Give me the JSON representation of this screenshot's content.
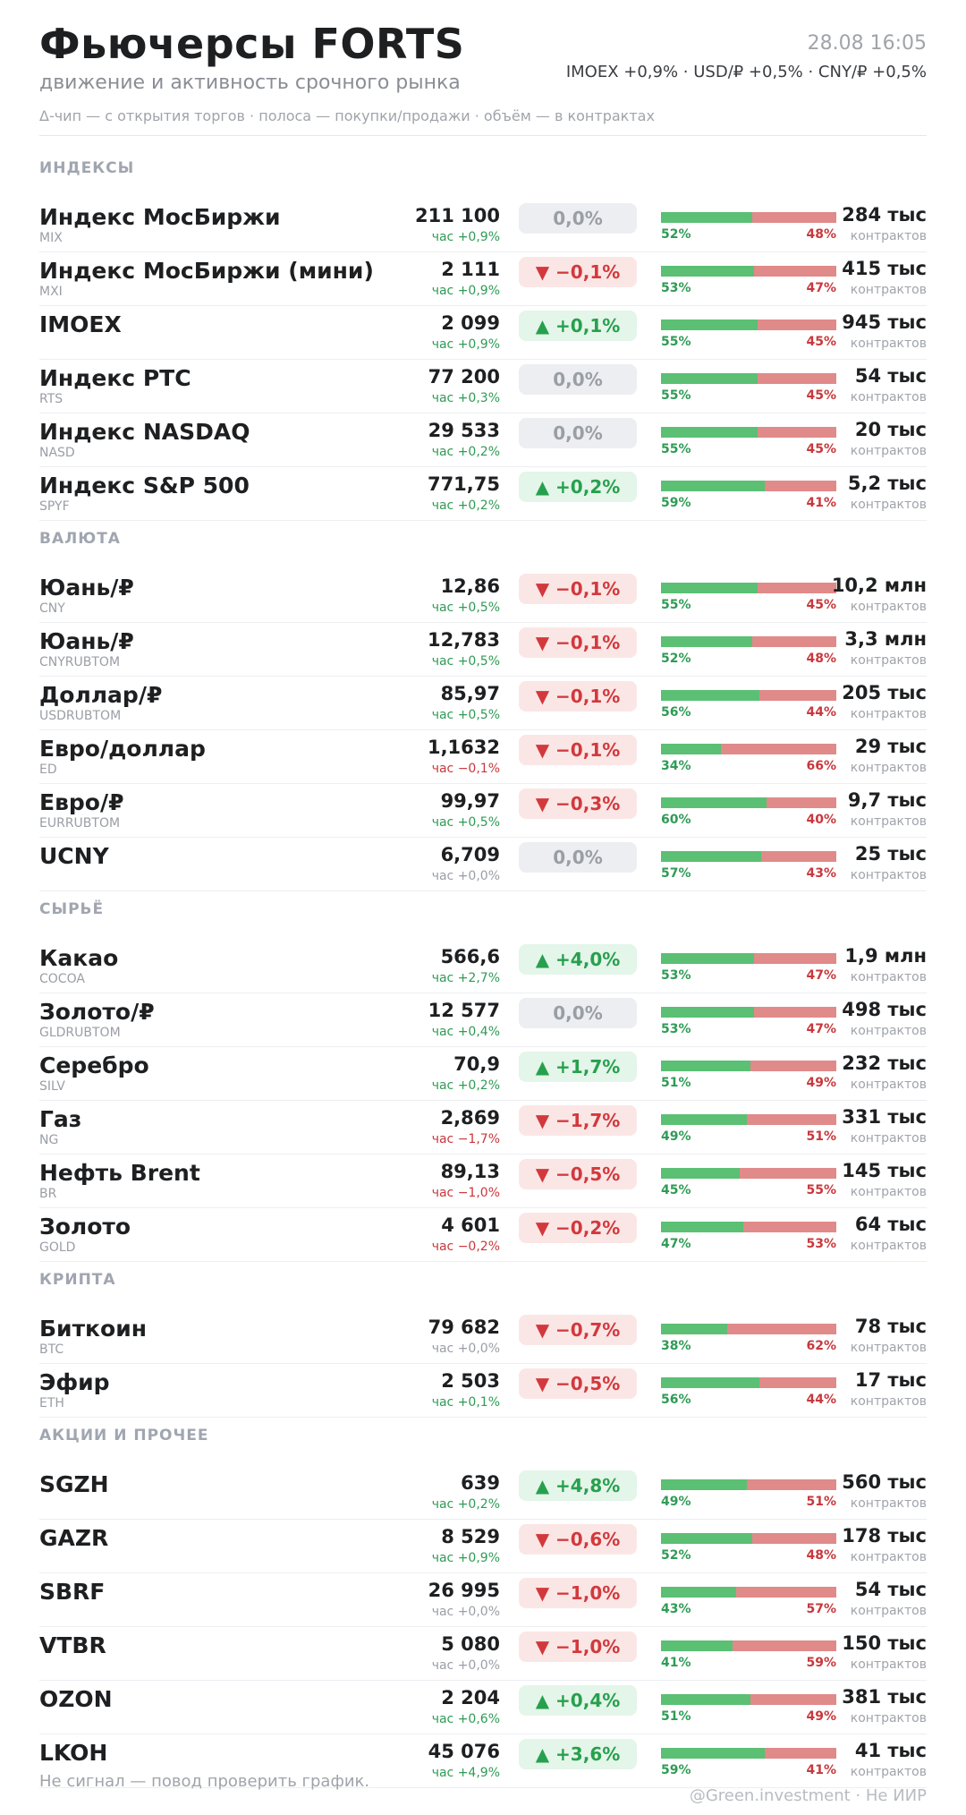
{
  "header": {
    "title": "Фьючерсы FORTS",
    "subtitle": "движение и активность срочного рынка",
    "datetime": "28.08 16:05",
    "tickers": "IMOEX +0,9%  ·  USD/₽ +0,5%  ·  CNY/₽ +0,5%",
    "legend": "Δ-чип — с открытия торгов  ·  полоса — покупки/продажи  ·  объём — в контрактах"
  },
  "sections": [
    {
      "title": "ИНДЕКСЫ",
      "rows": [
        {
          "name": "Индекс МосБиржи",
          "code": "MIX",
          "price": "211 100",
          "hour": "час +0,9%",
          "hour_dir": "up",
          "chip": "0,0%",
          "chip_dir": "flat",
          "buy_pct": "52%",
          "sell_pct": "48%",
          "buy": 52,
          "volume": "284 тыс",
          "volume_unit": "контрактов"
        },
        {
          "name": "Индекс МосБиржи (мини)",
          "code": "MXI",
          "price": "2 111",
          "hour": "час +0,9%",
          "hour_dir": "up",
          "chip": "▼ −0,1%",
          "chip_dir": "down",
          "buy_pct": "53%",
          "sell_pct": "47%",
          "buy": 53,
          "volume": "415 тыс",
          "volume_unit": "контрактов"
        },
        {
          "name": "IMOEX",
          "code": "",
          "price": "2 099",
          "hour": "час +0,9%",
          "hour_dir": "up",
          "chip": "▲ +0,1%",
          "chip_dir": "up",
          "buy_pct": "55%",
          "sell_pct": "45%",
          "buy": 55,
          "volume": "945 тыс",
          "volume_unit": "контрактов"
        },
        {
          "name": "Индекс РТС",
          "code": "RTS",
          "price": "77 200",
          "hour": "час +0,3%",
          "hour_dir": "up",
          "chip": "0,0%",
          "chip_dir": "flat",
          "buy_pct": "55%",
          "sell_pct": "45%",
          "buy": 55,
          "volume": "54 тыс",
          "volume_unit": "контрактов"
        },
        {
          "name": "Индекс NASDAQ",
          "code": "NASD",
          "price": "29 533",
          "hour": "час +0,2%",
          "hour_dir": "up",
          "chip": "0,0%",
          "chip_dir": "flat",
          "buy_pct": "55%",
          "sell_pct": "45%",
          "buy": 55,
          "volume": "20 тыс",
          "volume_unit": "контрактов"
        },
        {
          "name": "Индекс S&P 500",
          "code": "SPYF",
          "price": "771,75",
          "hour": "час +0,2%",
          "hour_dir": "up",
          "chip": "▲ +0,2%",
          "chip_dir": "up",
          "buy_pct": "59%",
          "sell_pct": "41%",
          "buy": 59,
          "volume": "5,2 тыс",
          "volume_unit": "контрактов"
        }
      ]
    },
    {
      "title": "ВАЛЮТА",
      "rows": [
        {
          "name": "Юань/₽",
          "code": "CNY",
          "price": "12,86",
          "hour": "час +0,5%",
          "hour_dir": "up",
          "chip": "▼ −0,1%",
          "chip_dir": "down",
          "buy_pct": "55%",
          "sell_pct": "45%",
          "buy": 55,
          "volume": "10,2 млн",
          "volume_unit": "контрактов"
        },
        {
          "name": "Юань/₽",
          "code": "CNYRUBTOM",
          "price": "12,783",
          "hour": "час +0,5%",
          "hour_dir": "up",
          "chip": "▼ −0,1%",
          "chip_dir": "down",
          "buy_pct": "52%",
          "sell_pct": "48%",
          "buy": 52,
          "volume": "3,3 млн",
          "volume_unit": "контрактов"
        },
        {
          "name": "Доллар/₽",
          "code": "USDRUBTOM",
          "price": "85,97",
          "hour": "час +0,5%",
          "hour_dir": "up",
          "chip": "▼ −0,1%",
          "chip_dir": "down",
          "buy_pct": "56%",
          "sell_pct": "44%",
          "buy": 56,
          "volume": "205 тыс",
          "volume_unit": "контрактов"
        },
        {
          "name": "Евро/доллар",
          "code": "ED",
          "price": "1,1632",
          "hour": "час −0,1%",
          "hour_dir": "down",
          "chip": "▼ −0,1%",
          "chip_dir": "down",
          "buy_pct": "34%",
          "sell_pct": "66%",
          "buy": 34,
          "volume": "29 тыс",
          "volume_unit": "контрактов"
        },
        {
          "name": "Евро/₽",
          "code": "EURRUBTOM",
          "price": "99,97",
          "hour": "час +0,5%",
          "hour_dir": "up",
          "chip": "▼ −0,3%",
          "chip_dir": "down",
          "buy_pct": "60%",
          "sell_pct": "40%",
          "buy": 60,
          "volume": "9,7 тыс",
          "volume_unit": "контрактов"
        },
        {
          "name": "UCNY",
          "code": "",
          "price": "6,709",
          "hour": "час +0,0%",
          "hour_dir": "flat",
          "chip": "0,0%",
          "chip_dir": "flat",
          "buy_pct": "57%",
          "sell_pct": "43%",
          "buy": 57,
          "volume": "25 тыс",
          "volume_unit": "контрактов"
        }
      ]
    },
    {
      "title": "СЫРЬЁ",
      "rows": [
        {
          "name": "Какао",
          "code": "COCOA",
          "price": "566,6",
          "hour": "час +2,7%",
          "hour_dir": "up",
          "chip": "▲ +4,0%",
          "chip_dir": "up",
          "buy_pct": "53%",
          "sell_pct": "47%",
          "buy": 53,
          "volume": "1,9 млн",
          "volume_unit": "контрактов"
        },
        {
          "name": "Золото/₽",
          "code": "GLDRUBTOM",
          "price": "12 577",
          "hour": "час +0,4%",
          "hour_dir": "up",
          "chip": "0,0%",
          "chip_dir": "flat",
          "buy_pct": "53%",
          "sell_pct": "47%",
          "buy": 53,
          "volume": "498 тыс",
          "volume_unit": "контрактов"
        },
        {
          "name": "Серебро",
          "code": "SILV",
          "price": "70,9",
          "hour": "час +0,2%",
          "hour_dir": "up",
          "chip": "▲ +1,7%",
          "chip_dir": "up",
          "buy_pct": "51%",
          "sell_pct": "49%",
          "buy": 51,
          "volume": "232 тыс",
          "volume_unit": "контрактов"
        },
        {
          "name": "Газ",
          "code": "NG",
          "price": "2,869",
          "hour": "час −1,7%",
          "hour_dir": "down",
          "chip": "▼ −1,7%",
          "chip_dir": "down",
          "buy_pct": "49%",
          "sell_pct": "51%",
          "buy": 49,
          "volume": "331 тыс",
          "volume_unit": "контрактов"
        },
        {
          "name": "Нефть Brent",
          "code": "BR",
          "price": "89,13",
          "hour": "час −1,0%",
          "hour_dir": "down",
          "chip": "▼ −0,5%",
          "chip_dir": "down",
          "buy_pct": "45%",
          "sell_pct": "55%",
          "buy": 45,
          "volume": "145 тыс",
          "volume_unit": "контрактов"
        },
        {
          "name": "Золото",
          "code": "GOLD",
          "price": "4 601",
          "hour": "час −0,2%",
          "hour_dir": "down",
          "chip": "▼ −0,2%",
          "chip_dir": "down",
          "buy_pct": "47%",
          "sell_pct": "53%",
          "buy": 47,
          "volume": "64 тыс",
          "volume_unit": "контрактов"
        }
      ]
    },
    {
      "title": "КРИПТА",
      "rows": [
        {
          "name": "Биткоин",
          "code": "BTC",
          "price": "79 682",
          "hour": "час +0,0%",
          "hour_dir": "flat",
          "chip": "▼ −0,7%",
          "chip_dir": "down",
          "buy_pct": "38%",
          "sell_pct": "62%",
          "buy": 38,
          "volume": "78 тыс",
          "volume_unit": "контрактов"
        },
        {
          "name": "Эфир",
          "code": "ETH",
          "price": "2 503",
          "hour": "час +0,1%",
          "hour_dir": "up",
          "chip": "▼ −0,5%",
          "chip_dir": "down",
          "buy_pct": "56%",
          "sell_pct": "44%",
          "buy": 56,
          "volume": "17 тыс",
          "volume_unit": "контрактов"
        }
      ]
    },
    {
      "title": "АКЦИИ И ПРОЧЕЕ",
      "rows": [
        {
          "name": "SGZH",
          "code": "",
          "price": "639",
          "hour": "час +0,2%",
          "hour_dir": "up",
          "chip": "▲ +4,8%",
          "chip_dir": "up",
          "buy_pct": "49%",
          "sell_pct": "51%",
          "buy": 49,
          "volume": "560 тыс",
          "volume_unit": "контрактов"
        },
        {
          "name": "GAZR",
          "code": "",
          "price": "8 529",
          "hour": "час +0,9%",
          "hour_dir": "up",
          "chip": "▼ −0,6%",
          "chip_dir": "down",
          "buy_pct": "52%",
          "sell_pct": "48%",
          "buy": 52,
          "volume": "178 тыс",
          "volume_unit": "контрактов"
        },
        {
          "name": "SBRF",
          "code": "",
          "price": "26 995",
          "hour": "час +0,0%",
          "hour_dir": "flat",
          "chip": "▼ −1,0%",
          "chip_dir": "down",
          "buy_pct": "43%",
          "sell_pct": "57%",
          "buy": 43,
          "volume": "54 тыс",
          "volume_unit": "контрактов"
        },
        {
          "name": "VTBR",
          "code": "",
          "price": "5 080",
          "hour": "час +0,0%",
          "hour_dir": "flat",
          "chip": "▼ −1,0%",
          "chip_dir": "down",
          "buy_pct": "41%",
          "sell_pct": "59%",
          "buy": 41,
          "volume": "150 тыс",
          "volume_unit": "контрактов"
        },
        {
          "name": "OZON",
          "code": "",
          "price": "2 204",
          "hour": "час +0,6%",
          "hour_dir": "up",
          "chip": "▲ +0,4%",
          "chip_dir": "up",
          "buy_pct": "51%",
          "sell_pct": "49%",
          "buy": 51,
          "volume": "381 тыс",
          "volume_unit": "контрактов"
        },
        {
          "name": "LKOH",
          "code": "",
          "price": "45 076",
          "hour": "час +4,9%",
          "hour_dir": "up",
          "chip": "▲ +3,6%",
          "chip_dir": "up",
          "buy_pct": "59%",
          "sell_pct": "41%",
          "buy": 59,
          "volume": "41 тыс",
          "volume_unit": "контрактов"
        }
      ]
    }
  ],
  "footer": {
    "note": "Не сигнал — повод проверить график.",
    "credit": "@Green.investment · Не ИИР"
  },
  "colors": {
    "buy": "#5bbf74",
    "sell": "#e08a8a",
    "up": "#27a04e",
    "down": "#d2393c",
    "flat": "#9a9ea5"
  }
}
